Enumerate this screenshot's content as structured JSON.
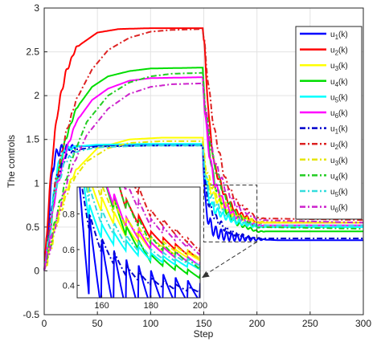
{
  "chart_data": {
    "type": "line",
    "title": "",
    "xlabel": "Step",
    "ylabel": "The controls",
    "xlim": [
      0,
      300
    ],
    "ylim": [
      -0.5,
      3
    ],
    "xticks": [
      "0",
      "50",
      "100",
      "150",
      "200",
      "250",
      "300"
    ],
    "yticks": [
      "-0.5",
      "0",
      "0.5",
      "1",
      "1.5",
      "2",
      "2.5",
      "3"
    ],
    "grid": true,
    "legend_position": "top-right",
    "switch_step": 150,
    "series": [
      {
        "name": "u1(k)",
        "legend_main": "u",
        "legend_sub": "1",
        "legend_suffix": "(k)",
        "color": "#0000ff",
        "dash": "solid",
        "x": [
          0,
          3,
          8,
          13,
          20,
          30,
          50,
          100,
          149,
          151,
          155,
          160,
          170,
          180,
          200,
          220,
          300
        ],
        "y": [
          0.0,
          0.35,
          1.2,
          1.37,
          1.4,
          1.42,
          1.43,
          1.44,
          1.44,
          0.8,
          0.55,
          0.45,
          0.4,
          0.38,
          0.36,
          0.35,
          0.35
        ]
      },
      {
        "name": "u2(k)",
        "legend_main": "u",
        "legend_sub": "2",
        "legend_suffix": "(k)",
        "color": "#ff0000",
        "dash": "solid",
        "x": [
          0,
          3,
          8,
          13,
          20,
          30,
          50,
          70,
          100,
          149,
          151,
          155,
          160,
          170,
          180,
          200,
          300
        ],
        "y": [
          0.0,
          0.55,
          1.35,
          1.85,
          2.25,
          2.55,
          2.72,
          2.76,
          2.77,
          2.77,
          2.5,
          1.7,
          1.2,
          0.85,
          0.68,
          0.55,
          0.55
        ]
      },
      {
        "name": "u3(k)",
        "legend_main": "u",
        "legend_sub": "3",
        "legend_suffix": "(k)",
        "color": "#ffff00",
        "dash": "solid",
        "x": [
          0,
          5,
          10,
          20,
          30,
          50,
          80,
          110,
          149,
          151,
          155,
          160,
          170,
          180,
          200,
          300
        ],
        "y": [
          0.0,
          0.25,
          0.5,
          0.9,
          1.15,
          1.4,
          1.5,
          1.52,
          1.52,
          1.2,
          0.95,
          0.85,
          0.7,
          0.62,
          0.55,
          0.55
        ]
      },
      {
        "name": "u4(k)",
        "legend_main": "u",
        "legend_sub": "4",
        "legend_suffix": "(k)",
        "color": "#00dd00",
        "dash": "solid",
        "x": [
          0,
          4,
          10,
          20,
          30,
          45,
          60,
          80,
          100,
          149,
          151,
          155,
          160,
          170,
          180,
          200,
          300
        ],
        "y": [
          0.0,
          0.3,
          0.9,
          1.5,
          1.85,
          2.1,
          2.22,
          2.28,
          2.31,
          2.32,
          1.9,
          1.4,
          1.0,
          0.7,
          0.55,
          0.45,
          0.45
        ]
      },
      {
        "name": "u5(k)",
        "legend_main": "u",
        "legend_sub": "5",
        "legend_suffix": "(k)",
        "color": "#00ffff",
        "dash": "solid",
        "x": [
          0,
          4,
          10,
          15,
          20,
          30,
          50,
          100,
          149,
          151,
          155,
          160,
          170,
          180,
          200,
          300
        ],
        "y": [
          0.0,
          0.3,
          1.0,
          1.3,
          1.38,
          1.42,
          1.44,
          1.45,
          1.45,
          1.1,
          0.8,
          0.7,
          0.62,
          0.56,
          0.5,
          0.5
        ]
      },
      {
        "name": "u6(k)",
        "legend_main": "u",
        "legend_sub": "6",
        "legend_suffix": "(k)",
        "color": "#ff00ff",
        "dash": "solid",
        "x": [
          0,
          4,
          10,
          20,
          30,
          45,
          60,
          80,
          100,
          149,
          151,
          155,
          160,
          170,
          180,
          200,
          300
        ],
        "y": [
          0.0,
          0.3,
          0.85,
          1.35,
          1.7,
          1.95,
          2.08,
          2.17,
          2.2,
          2.21,
          1.8,
          1.35,
          1.0,
          0.75,
          0.62,
          0.52,
          0.52
        ]
      },
      {
        "name": "u1(k)",
        "legend_main": "u",
        "legend_sub": "1",
        "legend_suffix": "(k)",
        "color": "#0000cc",
        "dash": "dashdot",
        "x": [
          0,
          5,
          10,
          20,
          30,
          50,
          100,
          149,
          151,
          155,
          160,
          170,
          180,
          190,
          200,
          300
        ],
        "y": [
          0.0,
          0.45,
          1.0,
          1.3,
          1.38,
          1.42,
          1.43,
          1.43,
          1.0,
          0.75,
          0.62,
          0.48,
          0.42,
          0.39,
          0.37,
          0.37
        ]
      },
      {
        "name": "u2(k)",
        "legend_main": "u",
        "legend_sub": "2",
        "legend_suffix": "(k)",
        "color": "#dd2222",
        "dash": "dashdot",
        "x": [
          0,
          5,
          10,
          20,
          30,
          45,
          60,
          80,
          100,
          120,
          149,
          151,
          155,
          160,
          170,
          180,
          200,
          300
        ],
        "y": [
          0.0,
          0.45,
          0.95,
          1.55,
          1.95,
          2.3,
          2.52,
          2.66,
          2.73,
          2.75,
          2.76,
          2.55,
          2.05,
          1.6,
          1.05,
          0.8,
          0.6,
          0.58
        ]
      },
      {
        "name": "u3(k)",
        "legend_main": "u",
        "legend_sub": "3",
        "legend_suffix": "(k)",
        "color": "#e6e600",
        "dash": "dashdot",
        "x": [
          0,
          5,
          12,
          25,
          40,
          60,
          80,
          110,
          149,
          151,
          155,
          160,
          170,
          180,
          200,
          300
        ],
        "y": [
          0.0,
          0.2,
          0.55,
          1.0,
          1.25,
          1.4,
          1.46,
          1.48,
          1.48,
          1.25,
          1.05,
          0.92,
          0.75,
          0.65,
          0.56,
          0.55
        ]
      },
      {
        "name": "u4(k)",
        "legend_main": "u",
        "legend_sub": "4",
        "legend_suffix": "(k)",
        "color": "#22cc22",
        "dash": "dashdot",
        "x": [
          0,
          5,
          12,
          25,
          40,
          60,
          80,
          100,
          120,
          149,
          151,
          155,
          160,
          170,
          180,
          200,
          300
        ],
        "y": [
          0.0,
          0.25,
          0.65,
          1.25,
          1.7,
          2.0,
          2.15,
          2.22,
          2.25,
          2.26,
          1.95,
          1.55,
          1.2,
          0.85,
          0.65,
          0.5,
          0.48
        ]
      },
      {
        "name": "u5(k)",
        "legend_main": "u",
        "legend_sub": "5",
        "legend_suffix": "(k)",
        "color": "#33dddd",
        "dash": "dashdot",
        "x": [
          0,
          5,
          10,
          20,
          30,
          50,
          100,
          149,
          151,
          155,
          160,
          170,
          180,
          200,
          300
        ],
        "y": [
          0.0,
          0.4,
          0.9,
          1.25,
          1.36,
          1.41,
          1.43,
          1.43,
          1.15,
          0.9,
          0.78,
          0.65,
          0.58,
          0.52,
          0.52
        ]
      },
      {
        "name": "u6(k)",
        "legend_main": "u",
        "legend_sub": "6",
        "legend_suffix": "(k)",
        "color": "#cc22cc",
        "dash": "dashdot",
        "x": [
          0,
          5,
          12,
          25,
          40,
          60,
          80,
          100,
          120,
          149,
          151,
          155,
          160,
          170,
          180,
          200,
          300
        ],
        "y": [
          0.0,
          0.25,
          0.6,
          1.15,
          1.55,
          1.85,
          2.02,
          2.1,
          2.13,
          2.14,
          1.9,
          1.55,
          1.25,
          0.95,
          0.75,
          0.58,
          0.55
        ]
      }
    ],
    "inset": {
      "xlim": [
        150,
        200
      ],
      "ylim": [
        0.33,
        0.95
      ],
      "xticks": [
        "160",
        "180",
        "200"
      ],
      "yticks": [
        "0.4",
        "0.6",
        "0.8"
      ],
      "zoom_box": {
        "x": [
          150,
          200
        ],
        "y": [
          0.33,
          0.98
        ]
      }
    }
  }
}
